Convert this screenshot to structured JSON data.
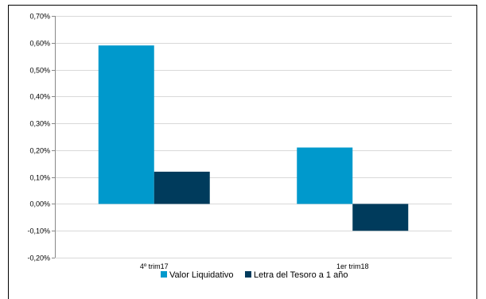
{
  "chart_data": {
    "type": "bar",
    "categories": [
      "4º trim17",
      "1er trim18"
    ],
    "series": [
      {
        "name": "Valor Liquidativo",
        "values": [
          0.59,
          0.21
        ],
        "color": "#0099CC"
      },
      {
        "name": "Letra del Tesoro a 1 año",
        "values": [
          0.12,
          -0.1
        ],
        "color": "#003B5C"
      }
    ],
    "yticks": [
      0.7,
      0.6,
      0.5,
      0.4,
      0.3,
      0.2,
      0.1,
      0.0,
      -0.1,
      -0.2
    ],
    "ytick_labels": [
      "0,70%",
      "0,60%",
      "0,50%",
      "0,40%",
      "0,30%",
      "0,20%",
      "0,10%",
      "0,00%",
      "-0,10%",
      "-0,20%"
    ],
    "ylim": [
      -0.2,
      0.7
    ],
    "ylabel": "",
    "xlabel": "",
    "title": "",
    "grid": true,
    "legend": "bottom-center",
    "gridColor": "#D9D9D9"
  }
}
